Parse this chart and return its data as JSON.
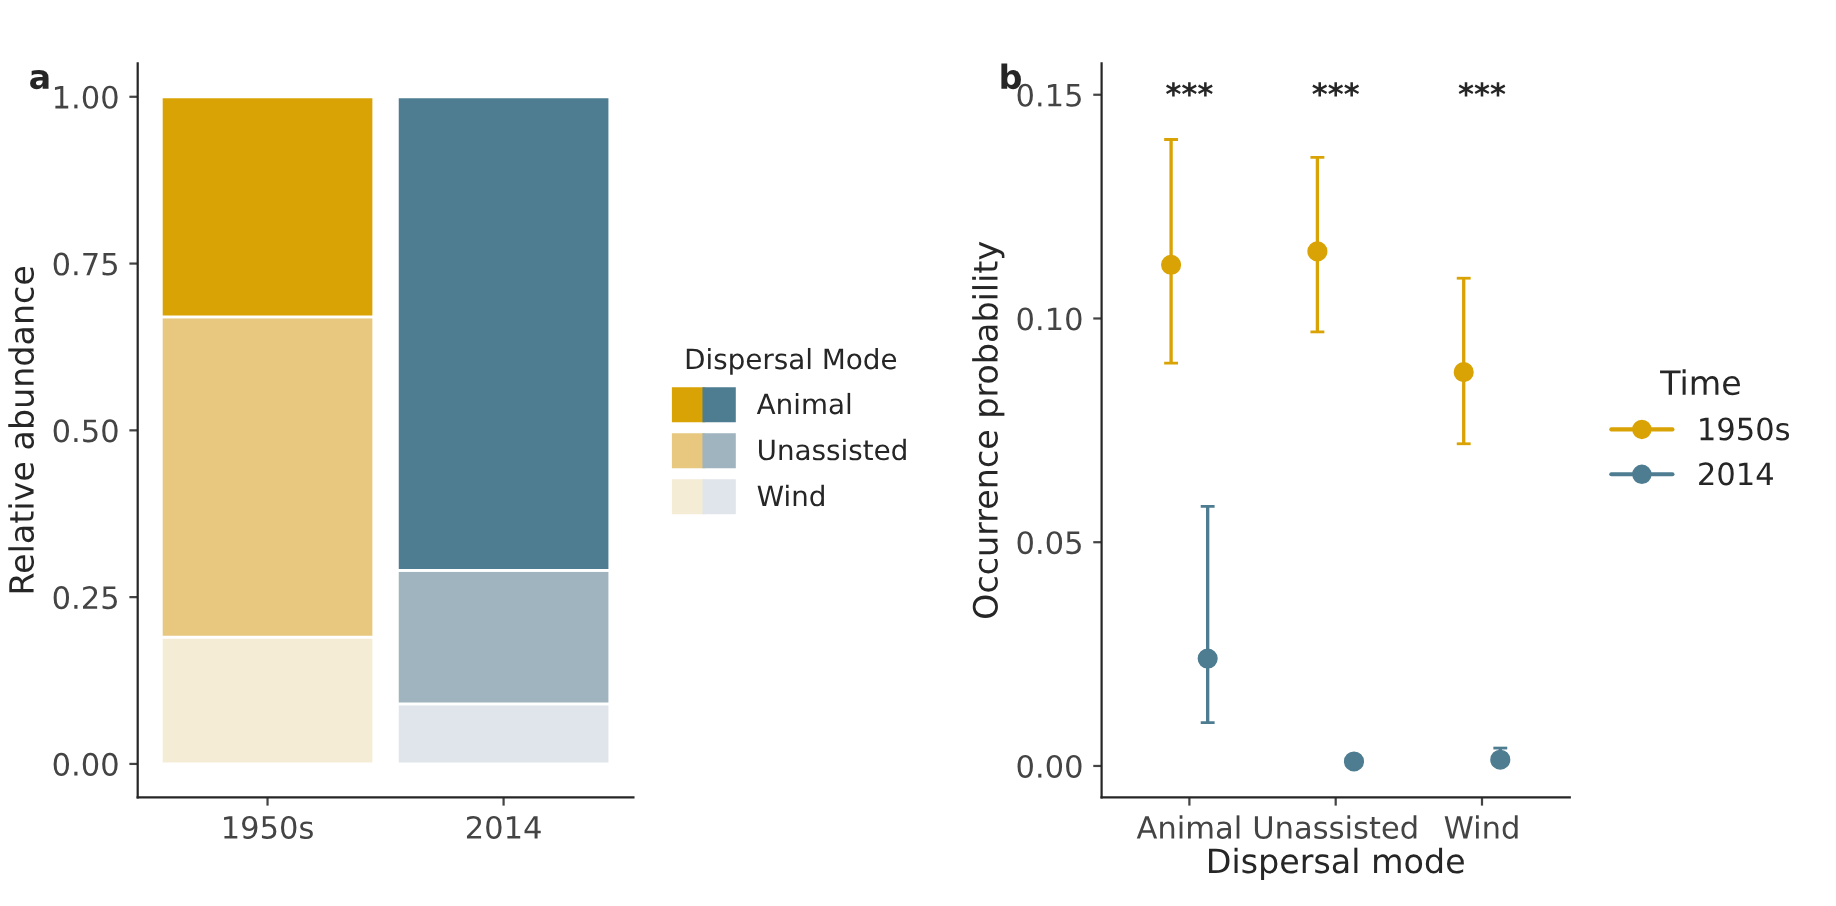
{
  "chart_data": [
    {
      "type": "bar",
      "title": "a",
      "ylabel": "Relative abundance",
      "legend_title": "Dispersal Mode",
      "categories": [
        "1950s",
        "2014"
      ],
      "stacked": true,
      "ylim": [
        -0.05,
        1.05
      ],
      "yticks": [
        {
          "value": 0,
          "label": "0.00"
        },
        {
          "value": 0.25,
          "label": "0.25"
        },
        {
          "value": 0.5,
          "label": "0.50"
        },
        {
          "value": 0.75,
          "label": "0.75"
        },
        {
          "value": 1,
          "label": "1.00"
        }
      ],
      "grid": false,
      "legend": "right",
      "series": [
        {
          "name": "Wind",
          "colors": [
            "#f5ecd6",
            "#dfe5eb"
          ],
          "values": [
            0.19,
            0.09
          ]
        },
        {
          "name": "Unassisted",
          "colors": [
            "#e8c77f",
            "#9fb4bf"
          ],
          "values": [
            0.48,
            0.2
          ]
        },
        {
          "name": "Animal",
          "colors": [
            "#daa305",
            "#4e7d91"
          ],
          "values": [
            0.33,
            0.71
          ]
        }
      ]
    },
    {
      "type": "scatter",
      "title": "b",
      "xlabel": "Dispersal mode",
      "ylabel": "Occurrence probability",
      "legend_title": "Time",
      "categories": [
        "Animal",
        "Unassisted",
        "Wind"
      ],
      "ylim": [
        -0.007,
        0.157
      ],
      "yticks": [
        {
          "value": 0,
          "label": "0.00"
        },
        {
          "value": 0.05,
          "label": "0.05"
        },
        {
          "value": 0.1,
          "label": "0.10"
        },
        {
          "value": 0.15,
          "label": "0.15"
        }
      ],
      "grid": false,
      "legend": "right",
      "marker": "circle",
      "annotations": [
        "***",
        "***",
        "***"
      ],
      "series": [
        {
          "name": "1950s",
          "color": "#daa305",
          "values": [
            0.112,
            0.115,
            0.088
          ],
          "errors": [
            [
              0.09,
              0.14
            ],
            [
              0.097,
              0.136
            ],
            [
              0.072,
              0.109
            ]
          ]
        },
        {
          "name": "2014",
          "color": "#4e7d91",
          "values": [
            0.024,
            0.001,
            0.0014
          ],
          "errors": [
            [
              0.0097,
              0.058
            ],
            [
              0.0005,
              0.002
            ],
            [
              0.0005,
              0.004
            ]
          ]
        }
      ]
    }
  ]
}
